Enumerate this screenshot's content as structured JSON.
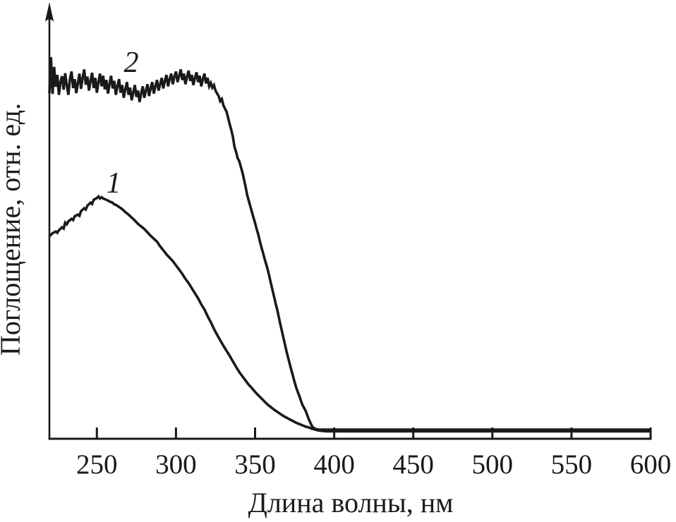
{
  "figure": {
    "background": "#ffffff",
    "ink_color": "#1a1a1a"
  },
  "chart_data": {
    "type": "line",
    "title": "",
    "xlabel": "Длина волны, нм",
    "ylabel": "Поглощение, отн. ед.",
    "x_range": [
      220,
      600
    ],
    "x_ticks": [
      250,
      300,
      350,
      400,
      450,
      500,
      550,
      600
    ],
    "y_axis": {
      "style": "arrow, no numeric ticks",
      "units": "отн. ед.",
      "value_range": [
        0,
        1
      ]
    },
    "grid": false,
    "legend_position": "inline-curve-labels",
    "line_color": "#1a1a1a",
    "series": [
      {
        "name": "curve-1",
        "label": "1",
        "description": "smooth band peaking near 250 nm, decaying to zero near 390 nm",
        "points": [
          [
            220,
            0.462
          ],
          [
            222,
            0.469
          ],
          [
            224,
            0.473
          ],
          [
            225,
            0.47
          ],
          [
            226,
            0.476
          ],
          [
            228,
            0.483
          ],
          [
            229,
            0.48
          ],
          [
            230,
            0.494
          ],
          [
            231,
            0.49
          ],
          [
            232,
            0.497
          ],
          [
            234,
            0.503
          ],
          [
            235,
            0.5
          ],
          [
            236,
            0.509
          ],
          [
            238,
            0.513
          ],
          [
            239,
            0.51
          ],
          [
            240,
            0.521
          ],
          [
            242,
            0.528
          ],
          [
            243,
            0.525
          ],
          [
            244,
            0.534
          ],
          [
            246,
            0.541
          ],
          [
            247,
            0.538
          ],
          [
            248,
            0.548
          ],
          [
            250,
            0.552
          ],
          [
            251,
            0.556
          ],
          [
            252,
            0.551
          ],
          [
            253,
            0.554
          ],
          [
            254,
            0.551
          ],
          [
            256,
            0.548
          ],
          [
            258,
            0.544
          ],
          [
            260,
            0.541
          ],
          [
            261,
            0.537
          ],
          [
            262,
            0.536
          ],
          [
            264,
            0.531
          ],
          [
            266,
            0.526
          ],
          [
            268,
            0.519
          ],
          [
            270,
            0.513
          ],
          [
            272,
            0.506
          ],
          [
            274,
            0.499
          ],
          [
            276,
            0.491
          ],
          [
            278,
            0.485
          ],
          [
            280,
            0.479
          ],
          [
            282,
            0.471
          ],
          [
            284,
            0.463
          ],
          [
            286,
            0.456
          ],
          [
            288,
            0.449
          ],
          [
            290,
            0.438
          ],
          [
            292,
            0.429
          ],
          [
            294,
            0.419
          ],
          [
            296,
            0.411
          ],
          [
            298,
            0.403
          ],
          [
            300,
            0.393
          ],
          [
            302,
            0.383
          ],
          [
            304,
            0.373
          ],
          [
            306,
            0.361
          ],
          [
            308,
            0.351
          ],
          [
            310,
            0.339
          ],
          [
            312,
            0.327
          ],
          [
            314,
            0.315
          ],
          [
            316,
            0.301
          ],
          [
            318,
            0.289
          ],
          [
            320,
            0.273
          ],
          [
            322,
            0.259
          ],
          [
            324,
            0.243
          ],
          [
            326,
            0.229
          ],
          [
            328,
            0.216
          ],
          [
            330,
            0.203
          ],
          [
            332,
            0.191
          ],
          [
            334,
            0.179
          ],
          [
            336,
            0.166
          ],
          [
            338,
            0.153
          ],
          [
            340,
            0.141
          ],
          [
            342,
            0.131
          ],
          [
            344,
            0.121
          ],
          [
            346,
            0.111
          ],
          [
            348,
            0.103
          ],
          [
            350,
            0.094
          ],
          [
            352,
            0.086
          ],
          [
            354,
            0.079
          ],
          [
            356,
            0.071
          ],
          [
            358,
            0.064
          ],
          [
            360,
            0.058
          ],
          [
            362,
            0.052
          ],
          [
            364,
            0.047
          ],
          [
            366,
            0.042
          ],
          [
            368,
            0.037
          ],
          [
            370,
            0.033
          ],
          [
            372,
            0.029
          ],
          [
            374,
            0.025
          ],
          [
            376,
            0.021
          ],
          [
            378,
            0.018
          ],
          [
            380,
            0.015
          ],
          [
            382,
            0.012
          ],
          [
            384,
            0.01
          ],
          [
            386,
            0.007
          ],
          [
            388,
            0.005
          ],
          [
            390,
            0.003
          ],
          [
            392,
            0.002
          ],
          [
            395,
            0.001
          ],
          [
            400,
            0.001
          ],
          [
            450,
            0.001
          ],
          [
            500,
            0.001
          ],
          [
            550,
            0.001
          ],
          [
            600,
            0.001
          ]
        ]
      },
      {
        "name": "curve-2",
        "label": "2",
        "description": "noisy high plateau 220-320 nm with shallow dip near 275 nm, steep edge falling to zero near 390 nm",
        "points": [
          [
            220,
            0.8
          ],
          [
            221,
            0.885
          ],
          [
            222,
            0.798
          ],
          [
            223,
            0.862
          ],
          [
            224,
            0.815
          ],
          [
            225,
            0.843
          ],
          [
            226,
            0.796
          ],
          [
            227,
            0.826
          ],
          [
            228,
            0.84
          ],
          [
            229,
            0.808
          ],
          [
            230,
            0.847
          ],
          [
            231,
            0.818
          ],
          [
            232,
            0.796
          ],
          [
            233,
            0.833
          ],
          [
            234,
            0.851
          ],
          [
            235,
            0.812
          ],
          [
            236,
            0.833
          ],
          [
            237,
            0.8
          ],
          [
            238,
            0.824
          ],
          [
            239,
            0.846
          ],
          [
            240,
            0.81
          ],
          [
            241,
            0.836
          ],
          [
            242,
            0.856
          ],
          [
            243,
            0.82
          ],
          [
            244,
            0.839
          ],
          [
            245,
            0.806
          ],
          [
            246,
            0.829
          ],
          [
            247,
            0.848
          ],
          [
            248,
            0.812
          ],
          [
            249,
            0.836
          ],
          [
            250,
            0.801
          ],
          [
            251,
            0.826
          ],
          [
            252,
            0.846
          ],
          [
            253,
            0.816
          ],
          [
            254,
            0.841
          ],
          [
            255,
            0.809
          ],
          [
            256,
            0.831
          ],
          [
            257,
            0.799
          ],
          [
            258,
            0.821
          ],
          [
            259,
            0.841
          ],
          [
            260,
            0.811
          ],
          [
            261,
            0.829
          ],
          [
            262,
            0.796
          ],
          [
            263,
            0.816
          ],
          [
            264,
            0.833
          ],
          [
            265,
            0.801
          ],
          [
            266,
            0.819
          ],
          [
            267,
            0.789
          ],
          [
            268,
            0.809
          ],
          [
            269,
            0.826
          ],
          [
            270,
            0.796
          ],
          [
            271,
            0.813
          ],
          [
            272,
            0.783
          ],
          [
            273,
            0.801
          ],
          [
            274,
            0.819
          ],
          [
            275,
            0.791
          ],
          [
            276,
            0.806
          ],
          [
            277,
            0.779
          ],
          [
            278,
            0.799
          ],
          [
            279,
            0.816
          ],
          [
            280,
            0.789
          ],
          [
            281,
            0.806
          ],
          [
            282,
            0.821
          ],
          [
            283,
            0.793
          ],
          [
            284,
            0.811
          ],
          [
            285,
            0.826
          ],
          [
            286,
            0.799
          ],
          [
            287,
            0.816
          ],
          [
            288,
            0.831
          ],
          [
            289,
            0.806
          ],
          [
            290,
            0.821
          ],
          [
            291,
            0.836
          ],
          [
            292,
            0.811
          ],
          [
            293,
            0.829
          ],
          [
            294,
            0.843
          ],
          [
            295,
            0.816
          ],
          [
            296,
            0.833
          ],
          [
            297,
            0.846
          ],
          [
            298,
            0.821
          ],
          [
            299,
            0.839
          ],
          [
            300,
            0.851
          ],
          [
            301,
            0.826
          ],
          [
            302,
            0.841
          ],
          [
            303,
            0.856
          ],
          [
            304,
            0.831
          ],
          [
            305,
            0.846
          ],
          [
            306,
            0.821
          ],
          [
            307,
            0.839
          ],
          [
            308,
            0.853
          ],
          [
            309,
            0.829
          ],
          [
            310,
            0.843
          ],
          [
            311,
            0.819
          ],
          [
            312,
            0.836
          ],
          [
            313,
            0.849
          ],
          [
            314,
            0.826
          ],
          [
            315,
            0.841
          ],
          [
            316,
            0.816
          ],
          [
            317,
            0.833
          ],
          [
            318,
            0.846
          ],
          [
            319,
            0.823
          ],
          [
            320,
            0.836
          ],
          [
            321,
            0.816
          ],
          [
            322,
            0.824
          ],
          [
            323,
            0.813
          ],
          [
            324,
            0.819
          ],
          [
            325,
            0.806
          ],
          [
            326,
            0.799
          ],
          [
            327,
            0.793
          ],
          [
            328,
            0.781
          ],
          [
            329,
            0.786
          ],
          [
            330,
            0.771
          ],
          [
            331,
            0.763
          ],
          [
            332,
            0.756
          ],
          [
            333,
            0.741
          ],
          [
            334,
            0.726
          ],
          [
            335,
            0.713
          ],
          [
            336,
            0.696
          ],
          [
            337,
            0.673
          ],
          [
            338,
            0.661
          ],
          [
            339,
            0.646
          ],
          [
            340,
            0.639
          ],
          [
            341,
            0.626
          ],
          [
            342,
            0.613
          ],
          [
            343,
            0.596
          ],
          [
            344,
            0.579
          ],
          [
            345,
            0.559
          ],
          [
            346,
            0.546
          ],
          [
            347,
            0.533
          ],
          [
            348,
            0.519
          ],
          [
            349,
            0.506
          ],
          [
            350,
            0.493
          ],
          [
            351,
            0.479
          ],
          [
            352,
            0.466
          ],
          [
            353,
            0.451
          ],
          [
            354,
            0.436
          ],
          [
            355,
            0.423
          ],
          [
            356,
            0.409
          ],
          [
            357,
            0.396
          ],
          [
            358,
            0.383
          ],
          [
            359,
            0.367
          ],
          [
            360,
            0.351
          ],
          [
            361,
            0.335
          ],
          [
            362,
            0.319
          ],
          [
            363,
            0.303
          ],
          [
            364,
            0.288
          ],
          [
            365,
            0.271
          ],
          [
            366,
            0.254
          ],
          [
            367,
            0.237
          ],
          [
            368,
            0.221
          ],
          [
            369,
            0.204
          ],
          [
            370,
            0.188
          ],
          [
            371,
            0.173
          ],
          [
            372,
            0.159
          ],
          [
            373,
            0.145
          ],
          [
            374,
            0.131
          ],
          [
            375,
            0.117
          ],
          [
            376,
            0.104
          ],
          [
            377,
            0.094
          ],
          [
            378,
            0.084
          ],
          [
            379,
            0.073
          ],
          [
            380,
            0.063
          ],
          [
            381,
            0.056
          ],
          [
            382,
            0.049
          ],
          [
            383,
            0.039
          ],
          [
            384,
            0.029
          ],
          [
            385,
            0.021
          ],
          [
            386,
            0.013
          ],
          [
            387,
            0.009
          ],
          [
            388,
            0.007
          ],
          [
            389,
            0.006
          ],
          [
            390,
            0.005
          ],
          [
            392,
            0.005
          ],
          [
            395,
            0.005
          ],
          [
            400,
            0.005
          ],
          [
            450,
            0.005
          ],
          [
            500,
            0.005
          ],
          [
            550,
            0.005
          ],
          [
            600,
            0.005
          ]
        ]
      }
    ]
  }
}
